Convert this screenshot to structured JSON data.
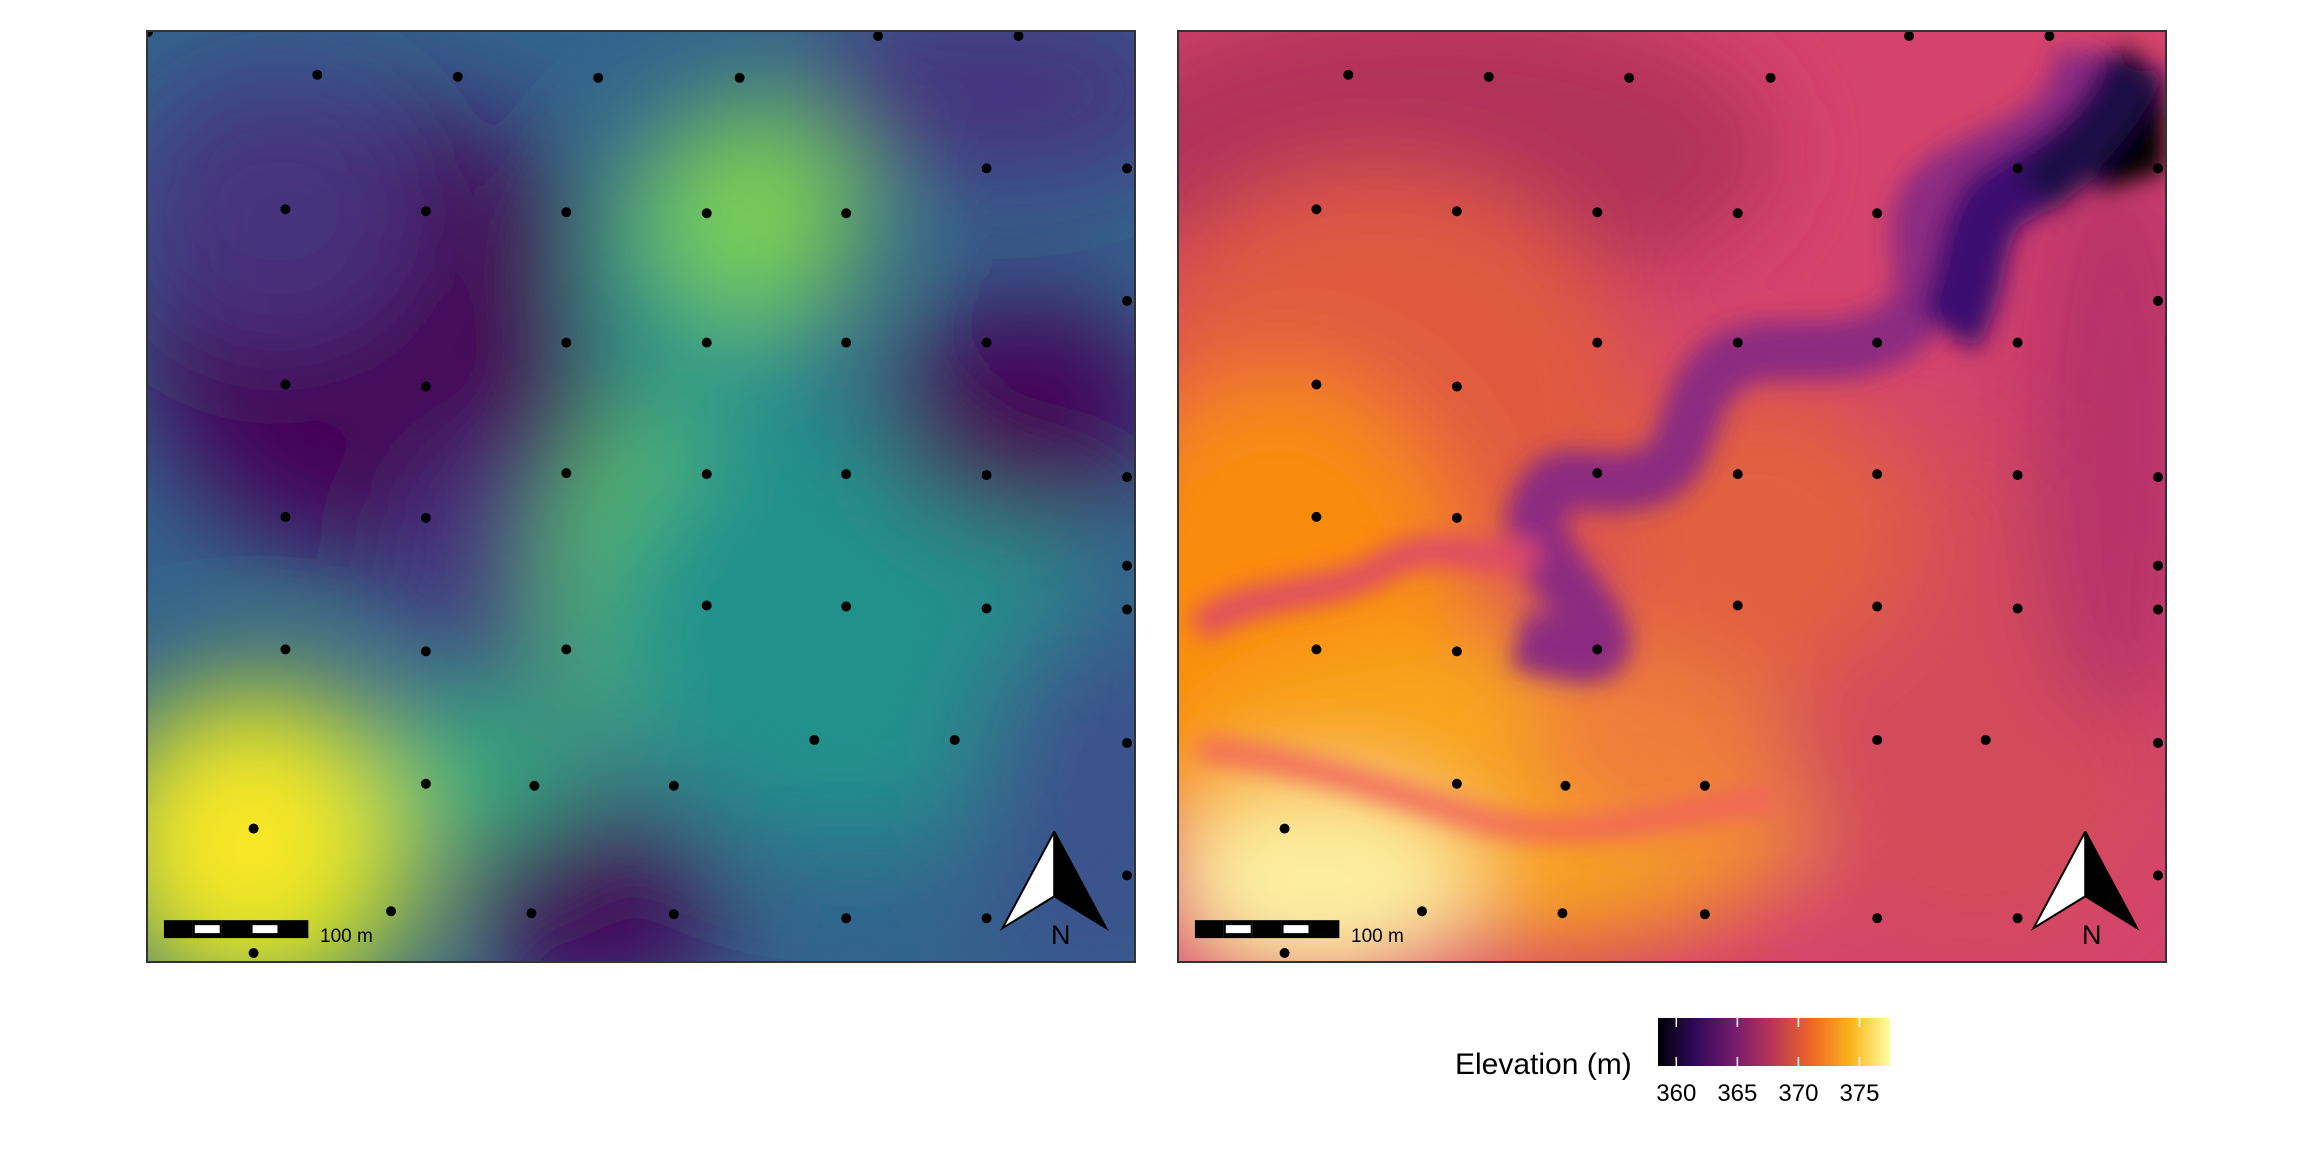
{
  "figure": {
    "panels": [
      {
        "id": "left",
        "palette": "viridis-like",
        "scale_bar_label": "100 m",
        "north_label": "N"
      },
      {
        "id": "right",
        "palette": "inferno-like",
        "scale_bar_label": "100 m",
        "north_label": "N"
      }
    ],
    "legend": {
      "title": "Elevation (m)",
      "ticks": [
        "360",
        "365",
        "370",
        "375"
      ],
      "tick_values": [
        360,
        365,
        370,
        375
      ],
      "range": [
        358.5,
        377.5
      ],
      "colors": [
        "#000004",
        "#320a5e",
        "#781c6d",
        "#bc3754",
        "#ed6925",
        "#fbb61a",
        "#fcffa4"
      ]
    }
  }
}
